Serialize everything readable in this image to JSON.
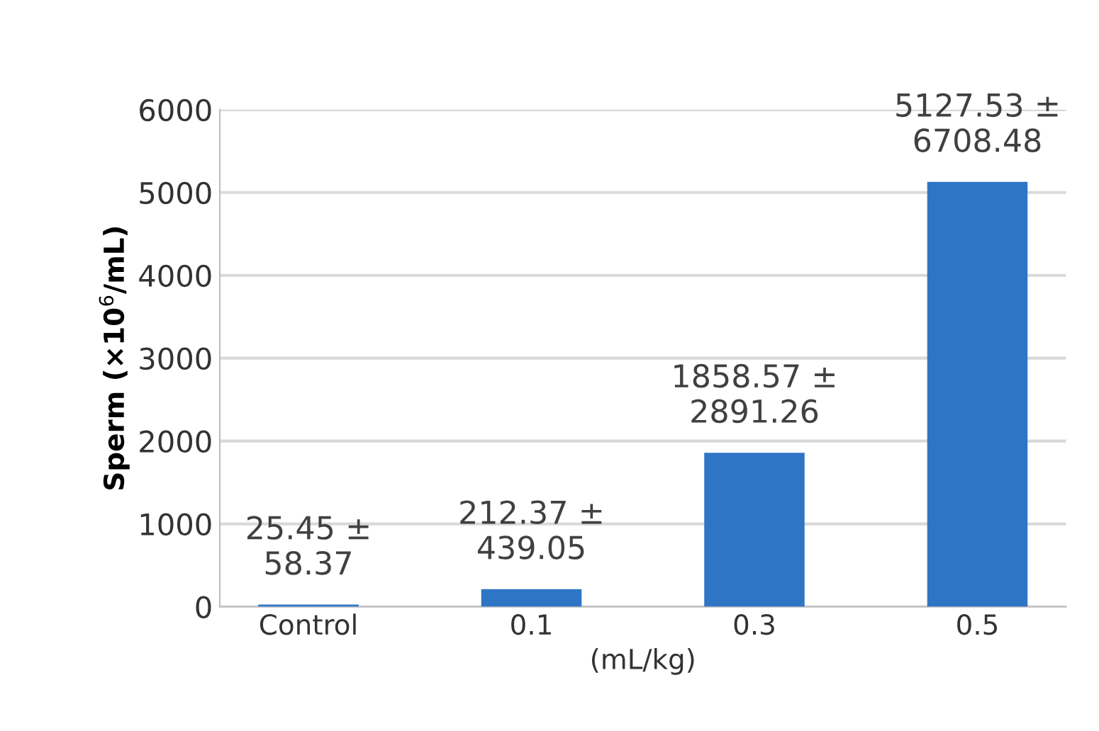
{
  "chart_data": {
    "type": "bar",
    "xlabel": "(mL/kg)",
    "ylabel": "Sperm (×10$^{6}$/mL)",
    "categories": [
      "Control",
      "0.1",
      "0.3",
      "0.5"
    ],
    "values": [
      25.45,
      212.37,
      1858.57,
      5127.53
    ],
    "value_labels": [
      "25.45 ±\n58.37",
      "212.37 ±\n439.05",
      "1858.57 ±\n2891.26",
      "5127.53 ±\n6708.48"
    ],
    "color": "#2e75c6",
    "ylim": [
      0,
      6000
    ],
    "yticks": [
      0,
      1000,
      2000,
      3000,
      4000,
      5000,
      6000
    ],
    "grid": "y",
    "legend": false
  }
}
